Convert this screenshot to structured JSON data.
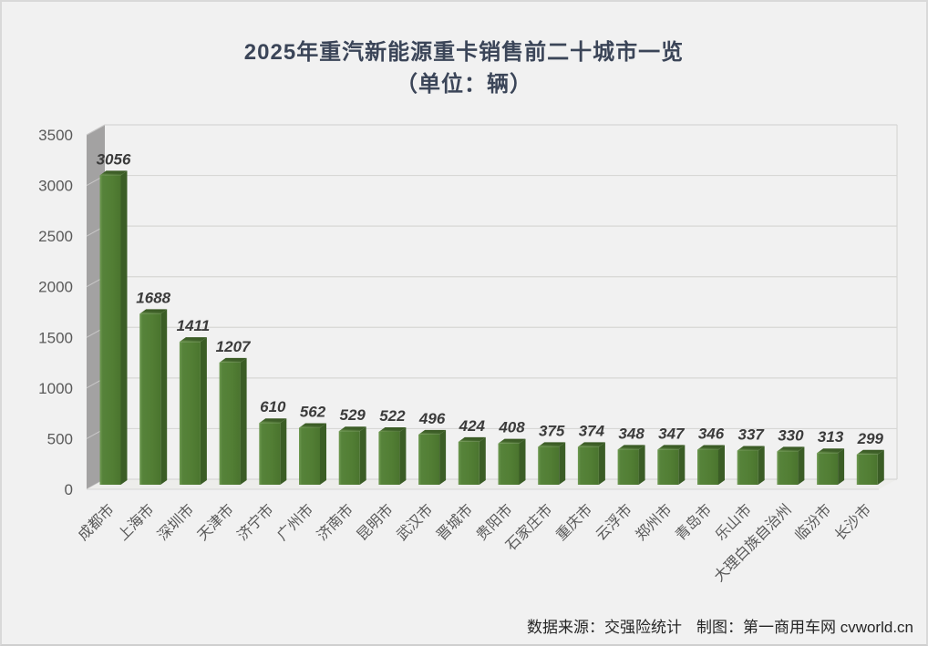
{
  "page": {
    "background": "#F1F1F1",
    "border_color": "#D9D9D9"
  },
  "header": {
    "title": "2025年重汽新能源重卡销售前二十城市一览",
    "subtitle": "（单位：辆）"
  },
  "footer": {
    "source": "数据来源：交强险统计",
    "credit": "制图：第一商用车网 cvworld.cn"
  },
  "chart_data": {
    "type": "bar",
    "style": "3d-column",
    "title": "2025年重汽新能源重卡销售前二十城市一览",
    "subtitle": "（单位：辆）",
    "categories": [
      "成都市",
      "上海市",
      "深圳市",
      "天津市",
      "济宁市",
      "广州市",
      "济南市",
      "昆明市",
      "武汉市",
      "晋城市",
      "贵阳市",
      "石家庄市",
      "重庆市",
      "云浮市",
      "郑州市",
      "青岛市",
      "乐山市",
      "大理白族自治州",
      "临汾市",
      "长沙市"
    ],
    "values": [
      3056,
      1688,
      1411,
      1207,
      610,
      562,
      529,
      522,
      496,
      424,
      408,
      375,
      374,
      348,
      347,
      346,
      337,
      330,
      313,
      299
    ],
    "ylim": [
      0,
      3500
    ],
    "ytick_interval": 500,
    "yticks": [
      0,
      500,
      1000,
      1500,
      2000,
      2500,
      3000,
      3500
    ],
    "grid": true,
    "legend_position": "none",
    "data_labels": true,
    "colors": {
      "bar_front": "#527E34",
      "bar_front_light": "#6F9A52",
      "bar_front_dark": "#4A742E",
      "bar_side": "#3B5D26",
      "bar_top_dark": "#395923",
      "bar_top_light": "#749C55",
      "wall": "#A3A2A2",
      "wall_tick": "#C9C8C8",
      "gridline": "#D7D7D5",
      "floor": "#EDEDEB",
      "floor_edge": "#D8D8D6",
      "axis_text": "#595959",
      "value_text": "#3B3B3B",
      "title_text": "#3B4558",
      "footer_text": "#262626"
    }
  }
}
